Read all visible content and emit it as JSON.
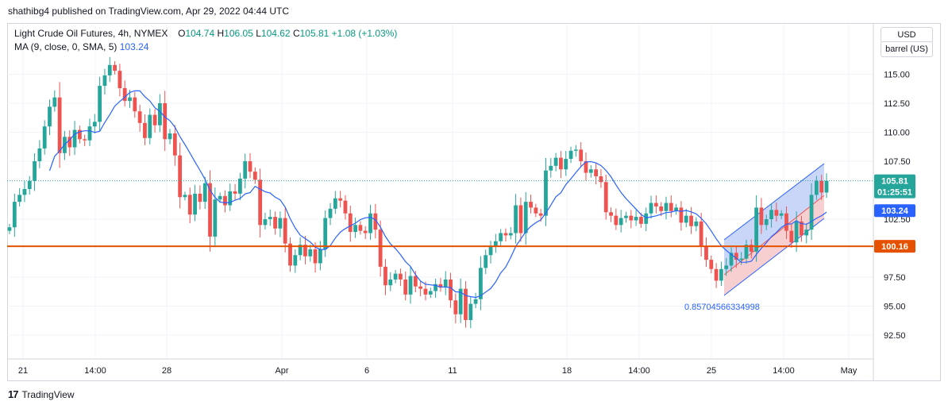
{
  "header": {
    "published": "shathibg4 published on TradingView.com, Apr 29, 2022 04:44 UTC"
  },
  "legend": {
    "symbol": "Light Crude Oil Futures, 4h, NYMEX",
    "o_label": "O",
    "o_value": "104.74",
    "h_label": "H",
    "h_value": "106.05",
    "l_label": "L",
    "l_value": "104.62",
    "c_label": "C",
    "c_value": "105.81",
    "change": "+1.08 (+1.03%)",
    "ma_label": "MA (9, close, 0, SMA, 5)",
    "ma_value": "103.24"
  },
  "unit": {
    "currency": "USD",
    "quantity": "barrel (US)"
  },
  "footer": {
    "brand": "TradingView"
  },
  "colors": {
    "up": "#26a69a",
    "down": "#ef5350",
    "ma": "#2962ff",
    "support": "#e65100",
    "channel_up": "#b3c4f5",
    "channel_down": "#f6c3c6"
  },
  "chart_data": {
    "type": "candlestick",
    "ylim": [
      91,
      119
    ],
    "y_ticks": [
      115.0,
      112.5,
      110.0,
      107.5,
      102.5,
      97.5,
      95.0,
      92.5
    ],
    "x_ticks": [
      "21",
      "14:00",
      "28",
      "Apr",
      "6",
      "11",
      "18",
      "14:00",
      "25",
      "14:00",
      "May"
    ],
    "price_label": {
      "value": "105.81",
      "countdown": "01:25:51"
    },
    "ma_label": "103.24",
    "support_level": {
      "value": 100.16,
      "label": "100.16"
    },
    "channel_annotation": "0.85704566334998",
    "closes": [
      101.8,
      104.0,
      104.6,
      105.1,
      105.8,
      107.5,
      108.6,
      110.5,
      112.2,
      113.0,
      108.2,
      109.6,
      108.7,
      110.2,
      109.4,
      109.3,
      110.5,
      110.9,
      114.0,
      114.9,
      115.8,
      115.3,
      113.8,
      112.7,
      113.0,
      111.8,
      110.8,
      109.5,
      111.5,
      110.6,
      112.5,
      109.4,
      109.9,
      108.0,
      104.4,
      104.6,
      102.9,
      104.7,
      104.0,
      105.6,
      101.0,
      104.2,
      104.5,
      103.7,
      104.9,
      104.7,
      106.0,
      107.5,
      106.6,
      105.9,
      102.0,
      102.5,
      102.7,
      101.7,
      102.6,
      100.4,
      98.5,
      99.4,
      100.3,
      99.3,
      99.9,
      98.7,
      99.9,
      102.6,
      103.4,
      104.3,
      104.1,
      103.0,
      101.4,
      102.0,
      101.5,
      101.3,
      103.0,
      101.6,
      98.4,
      96.8,
      97.3,
      97.8,
      97.3,
      96.0,
      97.6,
      96.7,
      96.5,
      96.0,
      96.3,
      96.9,
      96.6,
      97.3,
      95.5,
      94.3,
      96.5,
      93.8,
      95.2,
      95.6,
      98.3,
      99.4,
      100.1,
      100.6,
      101.3,
      101.1,
      101.3,
      103.7,
      101.3,
      104.0,
      103.5,
      103.0,
      102.8,
      106.7,
      107.1,
      107.8,
      106.8,
      107.7,
      108.4,
      108.5,
      107.5,
      106.5,
      106.8,
      106.2,
      105.7,
      103.1,
      102.8,
      102.0,
      102.6,
      102.8,
      102.4,
      102.7,
      102.1,
      103.0,
      103.9,
      103.6,
      103.2,
      103.9,
      103.2,
      103.5,
      102.2,
      102.8,
      101.9,
      102.3,
      100.2,
      99.0,
      98.2,
      97.2,
      98.2,
      98.5,
      99.6,
      99.0,
      99.1,
      100.3,
      99.7,
      103.5,
      102.0,
      102.5,
      103.3,
      102.8,
      103.0,
      101.5,
      100.5,
      102.3,
      101.1,
      101.6,
      104.6,
      105.8,
      104.8,
      105.81
    ]
  }
}
